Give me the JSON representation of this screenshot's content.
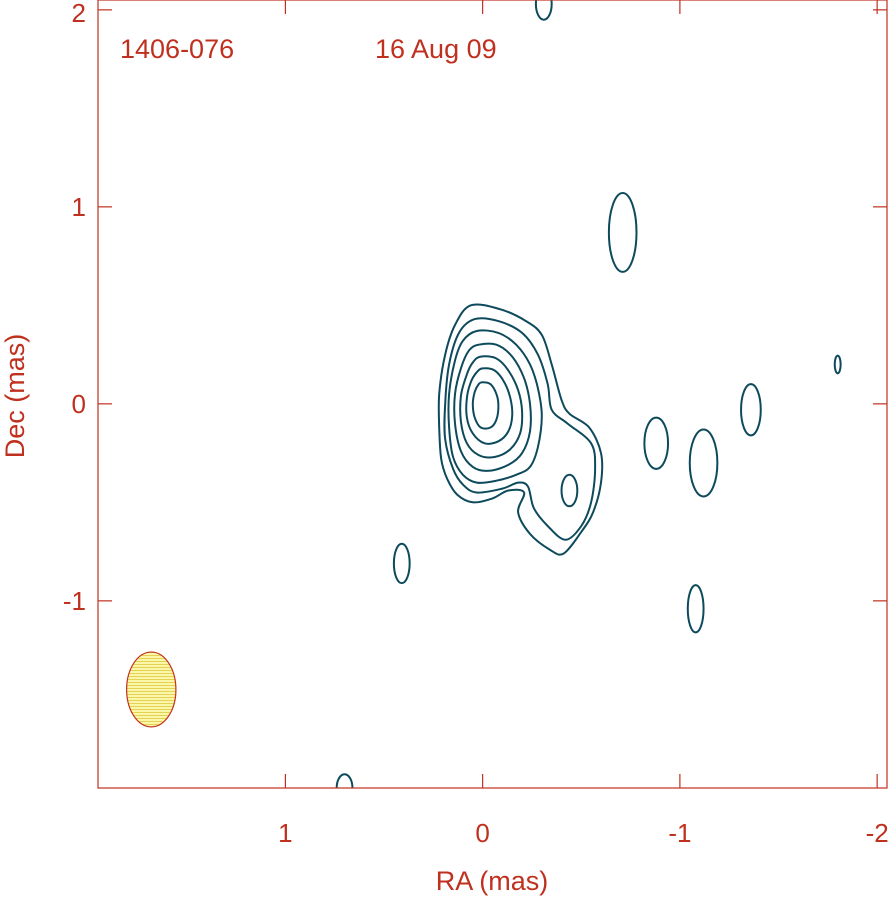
{
  "chart_data": {
    "type": "contour",
    "title": "",
    "annotations": {
      "source": "1406-076",
      "date": "16 Aug 09"
    },
    "xlabel": "RA (mas)",
    "ylabel": "Dec (mas)",
    "xlim": [
      1.95,
      -2.05
    ],
    "ylim": [
      -1.95,
      2.05
    ],
    "x_ticks": [
      1,
      0,
      -1,
      -2
    ],
    "x_tick_labels": [
      "1",
      "0",
      "-1",
      "-2"
    ],
    "y_ticks": [
      2,
      1,
      0,
      -1
    ],
    "y_tick_labels": [
      "2",
      "1",
      "0",
      "-1"
    ],
    "grid": false,
    "colors": {
      "axes": "#c0301f",
      "contours": "#0d4a5c",
      "beam_fill": "#fbf7a8",
      "beam_edge": "#c0301f"
    },
    "beam": {
      "x": 1.68,
      "y": -1.45,
      "width": 0.25,
      "height": 0.38
    },
    "core_contours": [
      [
        [
          0.06,
          0.5
        ],
        [
          -0.09,
          0.48
        ],
        [
          -0.22,
          0.42
        ],
        [
          -0.3,
          0.35
        ],
        [
          -0.35,
          0.2
        ],
        [
          -0.4,
          0.02
        ],
        [
          -0.44,
          -0.05
        ],
        [
          -0.54,
          -0.12
        ],
        [
          -0.6,
          -0.25
        ],
        [
          -0.6,
          -0.4
        ],
        [
          -0.56,
          -0.55
        ],
        [
          -0.5,
          -0.65
        ],
        [
          -0.41,
          -0.76
        ],
        [
          -0.34,
          -0.74
        ],
        [
          -0.24,
          -0.66
        ],
        [
          -0.18,
          -0.55
        ],
        [
          -0.21,
          -0.45
        ],
        [
          -0.13,
          -0.44
        ],
        [
          -0.05,
          -0.48
        ],
        [
          0.05,
          -0.5
        ],
        [
          0.13,
          -0.46
        ],
        [
          0.18,
          -0.38
        ],
        [
          0.21,
          -0.28
        ],
        [
          0.22,
          -0.12
        ],
        [
          0.22,
          0.05
        ],
        [
          0.19,
          0.25
        ],
        [
          0.14,
          0.4
        ]
      ],
      [
        [
          0.04,
          0.43
        ],
        [
          -0.08,
          0.42
        ],
        [
          -0.2,
          0.36
        ],
        [
          -0.28,
          0.25
        ],
        [
          -0.33,
          0.1
        ],
        [
          -0.35,
          -0.03
        ],
        [
          -0.43,
          -0.1
        ],
        [
          -0.55,
          -0.2
        ],
        [
          -0.57,
          -0.33
        ],
        [
          -0.55,
          -0.5
        ],
        [
          -0.5,
          -0.62
        ],
        [
          -0.42,
          -0.69
        ],
        [
          -0.33,
          -0.62
        ],
        [
          -0.26,
          -0.53
        ],
        [
          -0.23,
          -0.42
        ],
        [
          -0.18,
          -0.4
        ],
        [
          -0.1,
          -0.43
        ],
        [
          0.03,
          -0.45
        ],
        [
          0.1,
          -0.41
        ],
        [
          0.15,
          -0.33
        ],
        [
          0.19,
          -0.18
        ],
        [
          0.19,
          0.0
        ],
        [
          0.17,
          0.2
        ],
        [
          0.12,
          0.36
        ]
      ],
      [
        [
          0.03,
          0.37
        ],
        [
          -0.08,
          0.36
        ],
        [
          -0.17,
          0.3
        ],
        [
          -0.24,
          0.2
        ],
        [
          -0.28,
          0.08
        ],
        [
          -0.3,
          -0.06
        ],
        [
          -0.28,
          -0.22
        ],
        [
          -0.24,
          -0.32
        ],
        [
          -0.17,
          -0.36
        ],
        [
          -0.07,
          -0.39
        ],
        [
          0.03,
          -0.4
        ],
        [
          0.1,
          -0.36
        ],
        [
          0.15,
          -0.27
        ],
        [
          0.17,
          -0.12
        ],
        [
          0.17,
          0.05
        ],
        [
          0.14,
          0.22
        ],
        [
          0.1,
          0.32
        ]
      ],
      [
        [
          0.02,
          0.3
        ],
        [
          -0.07,
          0.3
        ],
        [
          -0.15,
          0.24
        ],
        [
          -0.21,
          0.13
        ],
        [
          -0.24,
          0.0
        ],
        [
          -0.24,
          -0.14
        ],
        [
          -0.2,
          -0.25
        ],
        [
          -0.13,
          -0.31
        ],
        [
          -0.03,
          -0.34
        ],
        [
          0.05,
          -0.32
        ],
        [
          0.11,
          -0.24
        ],
        [
          0.14,
          -0.1
        ],
        [
          0.14,
          0.05
        ],
        [
          0.11,
          0.18
        ],
        [
          0.07,
          0.27
        ]
      ],
      [
        [
          0.01,
          0.24
        ],
        [
          -0.07,
          0.23
        ],
        [
          -0.13,
          0.17
        ],
        [
          -0.18,
          0.07
        ],
        [
          -0.2,
          -0.04
        ],
        [
          -0.19,
          -0.15
        ],
        [
          -0.14,
          -0.23
        ],
        [
          -0.06,
          -0.27
        ],
        [
          0.02,
          -0.26
        ],
        [
          0.08,
          -0.2
        ],
        [
          0.11,
          -0.09
        ],
        [
          0.11,
          0.04
        ],
        [
          0.08,
          0.15
        ],
        [
          0.05,
          0.21
        ]
      ],
      [
        [
          0.0,
          0.18
        ],
        [
          -0.06,
          0.17
        ],
        [
          -0.11,
          0.11
        ],
        [
          -0.14,
          0.03
        ],
        [
          -0.15,
          -0.06
        ],
        [
          -0.13,
          -0.14
        ],
        [
          -0.08,
          -0.19
        ],
        [
          -0.01,
          -0.2
        ],
        [
          0.05,
          -0.15
        ],
        [
          0.08,
          -0.07
        ],
        [
          0.08,
          0.03
        ],
        [
          0.06,
          0.11
        ],
        [
          0.03,
          0.16
        ]
      ],
      [
        [
          0.0,
          0.11
        ],
        [
          -0.04,
          0.1
        ],
        [
          -0.07,
          0.05
        ],
        [
          -0.08,
          -0.01
        ],
        [
          -0.07,
          -0.08
        ],
        [
          -0.04,
          -0.12
        ],
        [
          0.01,
          -0.12
        ],
        [
          0.04,
          -0.07
        ],
        [
          0.05,
          0.0
        ],
        [
          0.04,
          0.06
        ],
        [
          0.02,
          0.1
        ]
      ]
    ],
    "blobs": [
      {
        "x": -0.31,
        "y": 2.03,
        "rx": 0.04,
        "ry": 0.08
      },
      {
        "x": -0.71,
        "y": 0.87,
        "rx": 0.07,
        "ry": 0.2
      },
      {
        "x": -0.88,
        "y": -0.2,
        "rx": 0.06,
        "ry": 0.13
      },
      {
        "x": -1.12,
        "y": -0.3,
        "rx": 0.07,
        "ry": 0.17
      },
      {
        "x": -1.36,
        "y": -0.03,
        "rx": 0.05,
        "ry": 0.13
      },
      {
        "x": -1.8,
        "y": 0.2,
        "rx": 0.015,
        "ry": 0.045
      },
      {
        "x": -1.08,
        "y": -1.04,
        "rx": 0.04,
        "ry": 0.12
      },
      {
        "x": -0.44,
        "y": -0.44,
        "rx": 0.04,
        "ry": 0.08
      },
      {
        "x": 0.41,
        "y": -0.81,
        "rx": 0.04,
        "ry": 0.1
      },
      {
        "x": 0.7,
        "y": -1.95,
        "rx": 0.04,
        "ry": 0.07
      }
    ]
  }
}
